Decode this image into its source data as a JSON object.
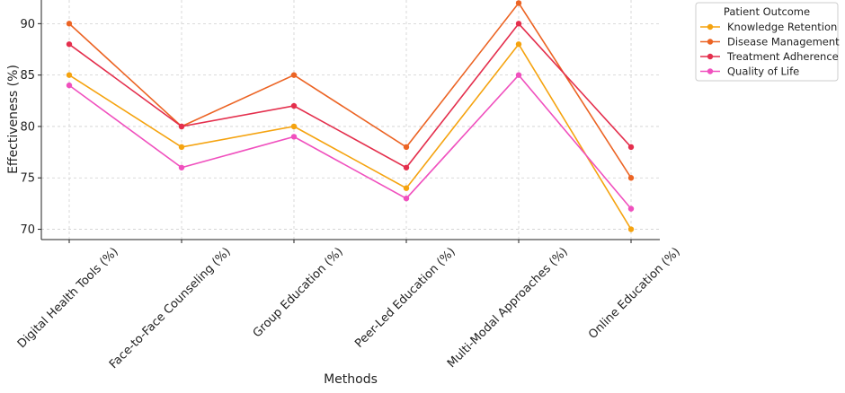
{
  "chart_data": {
    "type": "line",
    "title": "",
    "xlabel": "Methods",
    "ylabel": "Effectiveness (%)",
    "ylim": [
      69,
      92.3
    ],
    "yticks": [
      70,
      75,
      80,
      85,
      90
    ],
    "grid": true,
    "legend_title": "Patient Outcome",
    "legend_position": "outside-top-right",
    "categories": [
      "Digital Health Tools (%)",
      "Face-to-Face Counseling (%)",
      "Group Education (%)",
      "Peer-Led Education (%)",
      "Multi-Modal Approaches (%)",
      "Online Education (%)"
    ],
    "series": [
      {
        "name": "Knowledge Retention",
        "color": "#f5a30f",
        "values": [
          85,
          78,
          80,
          74,
          88,
          70
        ]
      },
      {
        "name": "Disease Management",
        "color": "#ec6424",
        "values": [
          90,
          80,
          85,
          78,
          92,
          75
        ]
      },
      {
        "name": "Treatment Adherence",
        "color": "#e42f4d",
        "values": [
          88,
          80,
          82,
          76,
          90,
          78
        ]
      },
      {
        "name": "Quality of Life",
        "color": "#f050be",
        "values": [
          84,
          76,
          79,
          73,
          85,
          72
        ]
      }
    ]
  }
}
